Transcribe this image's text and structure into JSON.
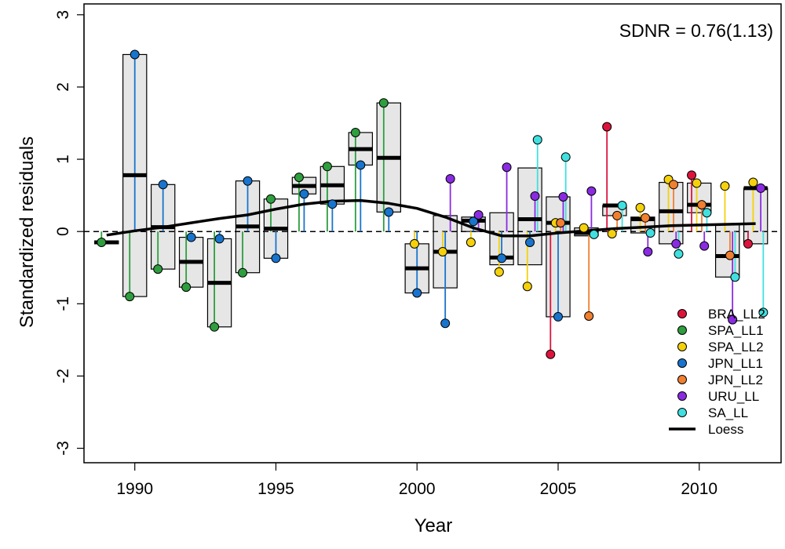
{
  "chart_data": {
    "type": "scatter",
    "xlabel": "Year",
    "ylabel": "Standardized residuals",
    "xlim": [
      1988.2,
      2012.9
    ],
    "ylim": [
      -3.2,
      3.15
    ],
    "x_ticks": [
      1990,
      1995,
      2000,
      2005,
      2010
    ],
    "x_tick_labels": [
      "1990",
      "1995",
      "2000",
      "2005",
      "2010"
    ],
    "y_ticks": [
      -3,
      -2,
      -1,
      0,
      1,
      2,
      3
    ],
    "y_tick_labels": [
      "-3",
      "-2",
      "-1",
      "0",
      "1",
      "2",
      "3"
    ],
    "annotation": "SDNR = 0.76(1.13)",
    "legend_position": "bottom-right",
    "series": [
      {
        "name": "BRA_LL2",
        "color": "#dc143c",
        "points": [
          [
            2005,
            -1.7
          ],
          [
            2007,
            1.45
          ],
          [
            2010,
            0.78
          ],
          [
            2012,
            -0.17
          ]
        ]
      },
      {
        "name": "SPA_LL1",
        "color": "#2e9e3e",
        "points": [
          [
            1989,
            -0.15
          ],
          [
            1990,
            -0.9
          ],
          [
            1991,
            -0.52
          ],
          [
            1992,
            -0.77
          ],
          [
            1993,
            -1.32
          ],
          [
            1994,
            -0.57
          ],
          [
            1995,
            0.45
          ],
          [
            1996,
            0.75
          ],
          [
            1997,
            0.9
          ],
          [
            1998,
            1.37
          ],
          [
            1999,
            1.78
          ]
        ]
      },
      {
        "name": "SPA_LL2",
        "color": "#f5d10c",
        "points": [
          [
            2000,
            -0.17
          ],
          [
            2001,
            -0.28
          ],
          [
            2002,
            -0.15
          ],
          [
            2003,
            -0.56
          ],
          [
            2004,
            -0.76
          ],
          [
            2005,
            0.12
          ],
          [
            2006,
            0.05
          ],
          [
            2007,
            -0.03
          ],
          [
            2008,
            0.33
          ],
          [
            2009,
            0.72
          ],
          [
            2010,
            0.67
          ],
          [
            2011,
            0.63
          ],
          [
            2012,
            0.68
          ]
        ]
      },
      {
        "name": "JPN_LL1",
        "color": "#1874cd",
        "points": [
          [
            1990,
            2.45
          ],
          [
            1991,
            0.65
          ],
          [
            1992,
            -0.08
          ],
          [
            1993,
            -0.1
          ],
          [
            1994,
            0.7
          ],
          [
            1995,
            -0.37
          ],
          [
            1996,
            0.52
          ],
          [
            1997,
            0.38
          ],
          [
            1998,
            0.92
          ],
          [
            1999,
            0.27
          ],
          [
            2000,
            -0.85
          ],
          [
            2001,
            -1.27
          ],
          [
            2002,
            0.14
          ],
          [
            2003,
            -0.37
          ],
          [
            2004,
            -0.15
          ],
          [
            2005,
            -1.18
          ]
        ]
      },
      {
        "name": "JPN_LL2",
        "color": "#f07f30",
        "points": [
          [
            2005,
            0.12
          ],
          [
            2006,
            -1.17
          ],
          [
            2007,
            0.22
          ],
          [
            2008,
            0.19
          ],
          [
            2009,
            0.65
          ],
          [
            2010,
            0.37
          ],
          [
            2011,
            -0.33
          ]
        ]
      },
      {
        "name": "URU_LL",
        "color": "#8a2be2",
        "points": [
          [
            2001,
            0.73
          ],
          [
            2002,
            0.23
          ],
          [
            2003,
            0.89
          ],
          [
            2004,
            0.49
          ],
          [
            2005,
            0.48
          ],
          [
            2006,
            0.56
          ],
          [
            2008,
            -0.28
          ],
          [
            2009,
            -0.17
          ],
          [
            2010,
            -0.2
          ],
          [
            2011,
            -1.22
          ],
          [
            2012,
            0.6
          ]
        ]
      },
      {
        "name": "SA_LL",
        "color": "#40e0e0",
        "points": [
          [
            2004,
            1.27
          ],
          [
            2005,
            1.03
          ],
          [
            2006,
            -0.04
          ],
          [
            2007,
            0.36
          ],
          [
            2008,
            -0.02
          ],
          [
            2009,
            -0.31
          ],
          [
            2010,
            0.26
          ],
          [
            2011,
            -0.63
          ],
          [
            2012,
            -1.12
          ]
        ]
      }
    ],
    "boxes": [
      {
        "x": 1989,
        "q1": -0.17,
        "median": -0.15,
        "q3": -0.13
      },
      {
        "x": 1990,
        "q1": -0.9,
        "median": 0.78,
        "q3": 2.45
      },
      {
        "x": 1991,
        "q1": -0.52,
        "median": 0.06,
        "q3": 0.65
      },
      {
        "x": 1992,
        "q1": -0.77,
        "median": -0.42,
        "q3": -0.08
      },
      {
        "x": 1993,
        "q1": -1.32,
        "median": -0.71,
        "q3": -0.1
      },
      {
        "x": 1994,
        "q1": -0.57,
        "median": 0.07,
        "q3": 0.7
      },
      {
        "x": 1995,
        "q1": -0.37,
        "median": 0.04,
        "q3": 0.45
      },
      {
        "x": 1996,
        "q1": 0.52,
        "median": 0.63,
        "q3": 0.75
      },
      {
        "x": 1997,
        "q1": 0.38,
        "median": 0.64,
        "q3": 0.9
      },
      {
        "x": 1998,
        "q1": 0.92,
        "median": 1.14,
        "q3": 1.37
      },
      {
        "x": 1999,
        "q1": 0.27,
        "median": 1.02,
        "q3": 1.78
      },
      {
        "x": 2000,
        "q1": -0.85,
        "median": -0.51,
        "q3": -0.17
      },
      {
        "x": 2001,
        "q1": -0.78,
        "median": -0.28,
        "q3": 0.22
      },
      {
        "x": 2002,
        "q1": 0.0,
        "median": 0.15,
        "q3": 0.2
      },
      {
        "x": 2003,
        "q1": -0.46,
        "median": -0.36,
        "q3": 0.26
      },
      {
        "x": 2004,
        "q1": -0.46,
        "median": 0.17,
        "q3": 0.88
      },
      {
        "x": 2005,
        "q1": -1.18,
        "median": 0.12,
        "q3": 0.48
      },
      {
        "x": 2006,
        "q1": -0.06,
        "median": -0.02,
        "q3": 0.05
      },
      {
        "x": 2007,
        "q1": 0.22,
        "median": 0.36,
        "q3": 0.36
      },
      {
        "x": 2008,
        "q1": -0.02,
        "median": 0.17,
        "q3": 0.2
      },
      {
        "x": 2009,
        "q1": -0.17,
        "median": 0.28,
        "q3": 0.68
      },
      {
        "x": 2010,
        "q1": 0.26,
        "median": 0.37,
        "q3": 0.67
      },
      {
        "x": 2011,
        "q1": -0.63,
        "median": -0.34,
        "q3": 0.1
      },
      {
        "x": 2012,
        "q1": -0.17,
        "median": 0.6,
        "q3": 0.6
      }
    ],
    "loess": {
      "name": "Loess",
      "color": "#000000",
      "x": [
        1989,
        1990,
        1991,
        1992,
        1993,
        1994,
        1995,
        1996,
        1997,
        1998,
        1999,
        2000,
        2001,
        2002,
        2003,
        2004,
        2005,
        2006,
        2007,
        2008,
        2009,
        2010,
        2011,
        2012
      ],
      "y": [
        -0.05,
        0.01,
        0.06,
        0.12,
        0.18,
        0.23,
        0.31,
        0.38,
        0.42,
        0.43,
        0.39,
        0.32,
        0.2,
        0.05,
        -0.06,
        -0.06,
        -0.02,
        0.01,
        0.04,
        0.06,
        0.08,
        0.09,
        0.1,
        0.11
      ]
    }
  }
}
